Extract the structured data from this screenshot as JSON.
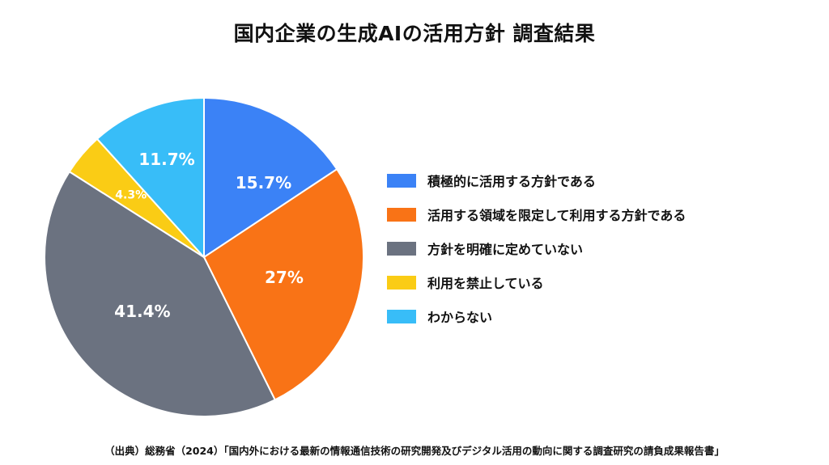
{
  "chart_data": {
    "type": "pie",
    "title": "国内企業の生成AIの活用方針 調査結果",
    "categories": [
      "積極的に活用する方針である",
      "活用する領域を限定して利用する方針である",
      "方針を明確に定めていない",
      "利用を禁止している",
      "わからない"
    ],
    "values": [
      15.7,
      27,
      41.4,
      4.3,
      11.7
    ],
    "value_labels": [
      "15.7%",
      "27%",
      "41.4%",
      "4.3%",
      "11.7%"
    ],
    "colors": [
      "#3b82f6",
      "#f97316",
      "#6b7280",
      "#facc15",
      "#38bdf8"
    ],
    "legend_position": "right",
    "start_angle": "top",
    "direction": "clockwise"
  },
  "source": "（出典）総務省（2024）「国内外における最新の情報通信技術の研究開発及びデジタル活用の動向に関する調査研究の請負成果報告書」"
}
